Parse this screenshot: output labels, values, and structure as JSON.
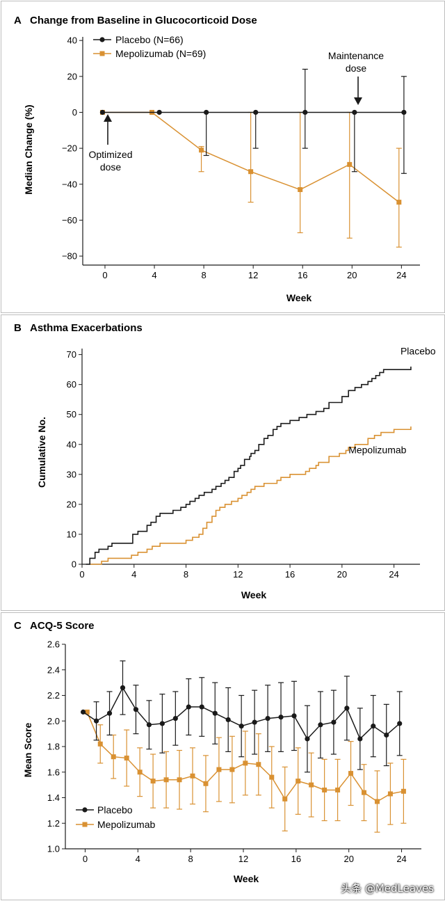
{
  "colors": {
    "placebo": "#1a1a1a",
    "mepolizumab": "#d99132",
    "axis": "#1a1a1a",
    "border": "#bdbdbd"
  },
  "watermark": "头条 @MedLeaves",
  "chart_data": [
    {
      "panel_letter": "A",
      "type": "line",
      "title": "Change from Baseline in Glucocorticoid Dose",
      "xlabel": "Week",
      "ylabel": "Median Change (%)",
      "xlim": [
        -1.8,
        25.5
      ],
      "ylim": [
        -85,
        42
      ],
      "xticks": [
        0,
        4,
        8,
        12,
        16,
        20,
        24
      ],
      "yticks": [
        40,
        20,
        0,
        -20,
        -40,
        -60,
        -80
      ],
      "legend": {
        "placement": "top-left",
        "entries": [
          "Placebo (N=66)",
          "Mepolizumab (N=69)"
        ]
      },
      "annotations": [
        {
          "lines": [
            "Optimized",
            "dose"
          ],
          "x": 0.2
        },
        {
          "lines": [
            "Maintenance",
            "dose"
          ],
          "x": 20.2
        }
      ],
      "series": [
        {
          "name": "Placebo (N=66)",
          "key": "placebo",
          "x": [
            -0.2,
            4.4,
            8.2,
            12.2,
            16.2,
            20.2,
            24.2
          ],
          "y": [
            0,
            0,
            0,
            0,
            0,
            0,
            0
          ],
          "err_low": [
            0,
            0,
            -24,
            -20,
            -20,
            -33,
            -34
          ],
          "err_high": [
            0,
            0,
            0,
            0,
            24,
            0,
            20
          ]
        },
        {
          "name": "Mepolizumab (N=69)",
          "key": "mepolizumab",
          "x": [
            -0.2,
            3.8,
            7.8,
            11.8,
            15.8,
            19.8,
            23.8
          ],
          "y": [
            0,
            0,
            -21,
            -33,
            -43,
            -29,
            -50
          ],
          "err_low": [
            0,
            0,
            -33,
            -50,
            -67,
            -70,
            -75
          ],
          "err_high": [
            0,
            0,
            -19,
            0,
            0,
            0,
            -20
          ]
        }
      ]
    },
    {
      "panel_letter": "B",
      "type": "line",
      "title": "Asthma Exacerbations",
      "xlabel": "Week",
      "ylabel": "Cumulative No.",
      "xlim": [
        0,
        26
      ],
      "ylim": [
        0,
        72
      ],
      "xticks": [
        0,
        4,
        8,
        12,
        16,
        20,
        24
      ],
      "yticks": [
        0,
        10,
        20,
        30,
        40,
        50,
        60,
        70
      ],
      "series": [
        {
          "name": "Placebo",
          "key": "placebo",
          "label_at": [
            24.5,
            70
          ],
          "x": [
            0.3,
            0.6,
            1.0,
            1.3,
            2.0,
            2.3,
            3.9,
            4.3,
            5.0,
            5.3,
            5.7,
            6.0,
            7.0,
            7.6,
            8.0,
            8.3,
            8.7,
            9.0,
            9.4,
            10.0,
            10.3,
            10.7,
            11.0,
            11.3,
            11.7,
            12.0,
            12.2,
            12.5,
            12.9,
            13.0,
            13.3,
            13.6,
            14.0,
            14.3,
            14.7,
            15.0,
            15.3,
            16.0,
            16.7,
            17.3,
            18.0,
            18.6,
            19.0,
            20.0,
            20.5,
            21.0,
            21.5,
            22.0,
            22.3,
            22.6,
            22.9,
            23.2,
            25.3
          ],
          "y": [
            0,
            2,
            4,
            5,
            6,
            7,
            10,
            11,
            13,
            14,
            16,
            17,
            18,
            19,
            20,
            21,
            22,
            23,
            24,
            25,
            26,
            27,
            28,
            29,
            31,
            32,
            33,
            35,
            36,
            37,
            38,
            40,
            42,
            43,
            45,
            46,
            47,
            48,
            49,
            50,
            51,
            52,
            54,
            56,
            58,
            59,
            60,
            61,
            62,
            63,
            64,
            65,
            66
          ]
        },
        {
          "name": "Mepolizumab",
          "key": "mepolizumab",
          "label_at": [
            20.5,
            37
          ],
          "x": [
            0.6,
            1.5,
            2.0,
            3.8,
            4.3,
            5.0,
            5.4,
            6.0,
            8.0,
            8.5,
            9.0,
            9.3,
            9.6,
            10.0,
            10.3,
            10.6,
            11.0,
            11.5,
            12.0,
            12.3,
            12.7,
            13.0,
            13.3,
            14.0,
            15.0,
            15.3,
            16.0,
            17.2,
            17.5,
            18.0,
            18.2,
            19.0,
            19.8,
            20.3,
            20.5,
            21.0,
            22.0,
            22.5,
            23.0,
            24.0,
            25.3
          ],
          "y": [
            0,
            1,
            2,
            3,
            4,
            5,
            6,
            7,
            8,
            9,
            10,
            12,
            14,
            16,
            18,
            19,
            20,
            21,
            22,
            23,
            24,
            25,
            26,
            27,
            28,
            29,
            30,
            31,
            32,
            33,
            34,
            36,
            37,
            38,
            39,
            40,
            42,
            43,
            44,
            45,
            46
          ]
        }
      ]
    },
    {
      "panel_letter": "C",
      "type": "line",
      "title": "ACQ-5 Score",
      "xlabel": "Week",
      "ylabel": "Mean Score",
      "xlim": [
        -1.5,
        25.5
      ],
      "ylim": [
        1.0,
        2.6
      ],
      "xticks": [
        0,
        4,
        8,
        12,
        16,
        20,
        24
      ],
      "yticks": [
        1.0,
        1.2,
        1.4,
        1.6,
        1.8,
        2.0,
        2.2,
        2.4,
        2.6
      ],
      "legend": {
        "placement": "bottom-left",
        "entries": [
          "Placebo",
          "Mepolizumab"
        ]
      },
      "series": [
        {
          "name": "Placebo",
          "key": "placebo",
          "x": [
            -0.15,
            0.85,
            1.85,
            2.85,
            3.85,
            4.85,
            5.85,
            6.85,
            7.85,
            8.85,
            9.85,
            10.85,
            11.85,
            12.85,
            13.85,
            14.85,
            15.85,
            16.85,
            17.85,
            18.85,
            19.85,
            20.85,
            21.85,
            22.85,
            23.85
          ],
          "y": [
            2.07,
            2.0,
            2.06,
            2.26,
            2.09,
            1.97,
            1.98,
            2.02,
            2.11,
            2.11,
            2.06,
            2.01,
            1.96,
            1.99,
            2.02,
            2.03,
            2.04,
            1.86,
            1.97,
            1.99,
            2.1,
            1.86,
            1.96,
            1.89,
            1.98
          ],
          "err": [
            0,
            0.15,
            0.17,
            0.21,
            0.19,
            0.19,
            0.23,
            0.21,
            0.22,
            0.23,
            0.24,
            0.25,
            0.24,
            0.25,
            0.26,
            0.27,
            0.27,
            0.26,
            0.26,
            0.25,
            0.25,
            0.24,
            0.24,
            0.24,
            0.25
          ]
        },
        {
          "name": "Mepolizumab",
          "key": "mepolizumab",
          "x": [
            0.15,
            1.15,
            2.15,
            3.15,
            4.15,
            5.15,
            6.15,
            7.15,
            8.15,
            9.15,
            10.15,
            11.15,
            12.15,
            13.15,
            14.15,
            15.15,
            16.15,
            17.15,
            18.15,
            19.15,
            20.15,
            21.15,
            22.15,
            23.15,
            24.15
          ],
          "y": [
            2.07,
            1.82,
            1.72,
            1.71,
            1.6,
            1.53,
            1.54,
            1.54,
            1.57,
            1.51,
            1.62,
            1.62,
            1.67,
            1.66,
            1.56,
            1.39,
            1.53,
            1.5,
            1.46,
            1.46,
            1.59,
            1.44,
            1.37,
            1.43,
            1.45
          ],
          "err": [
            0,
            0.15,
            0.17,
            0.22,
            0.19,
            0.21,
            0.22,
            0.23,
            0.22,
            0.22,
            0.25,
            0.26,
            0.25,
            0.24,
            0.24,
            0.25,
            0.26,
            0.25,
            0.24,
            0.24,
            0.25,
            0.22,
            0.24,
            0.24,
            0.25
          ]
        }
      ]
    }
  ]
}
